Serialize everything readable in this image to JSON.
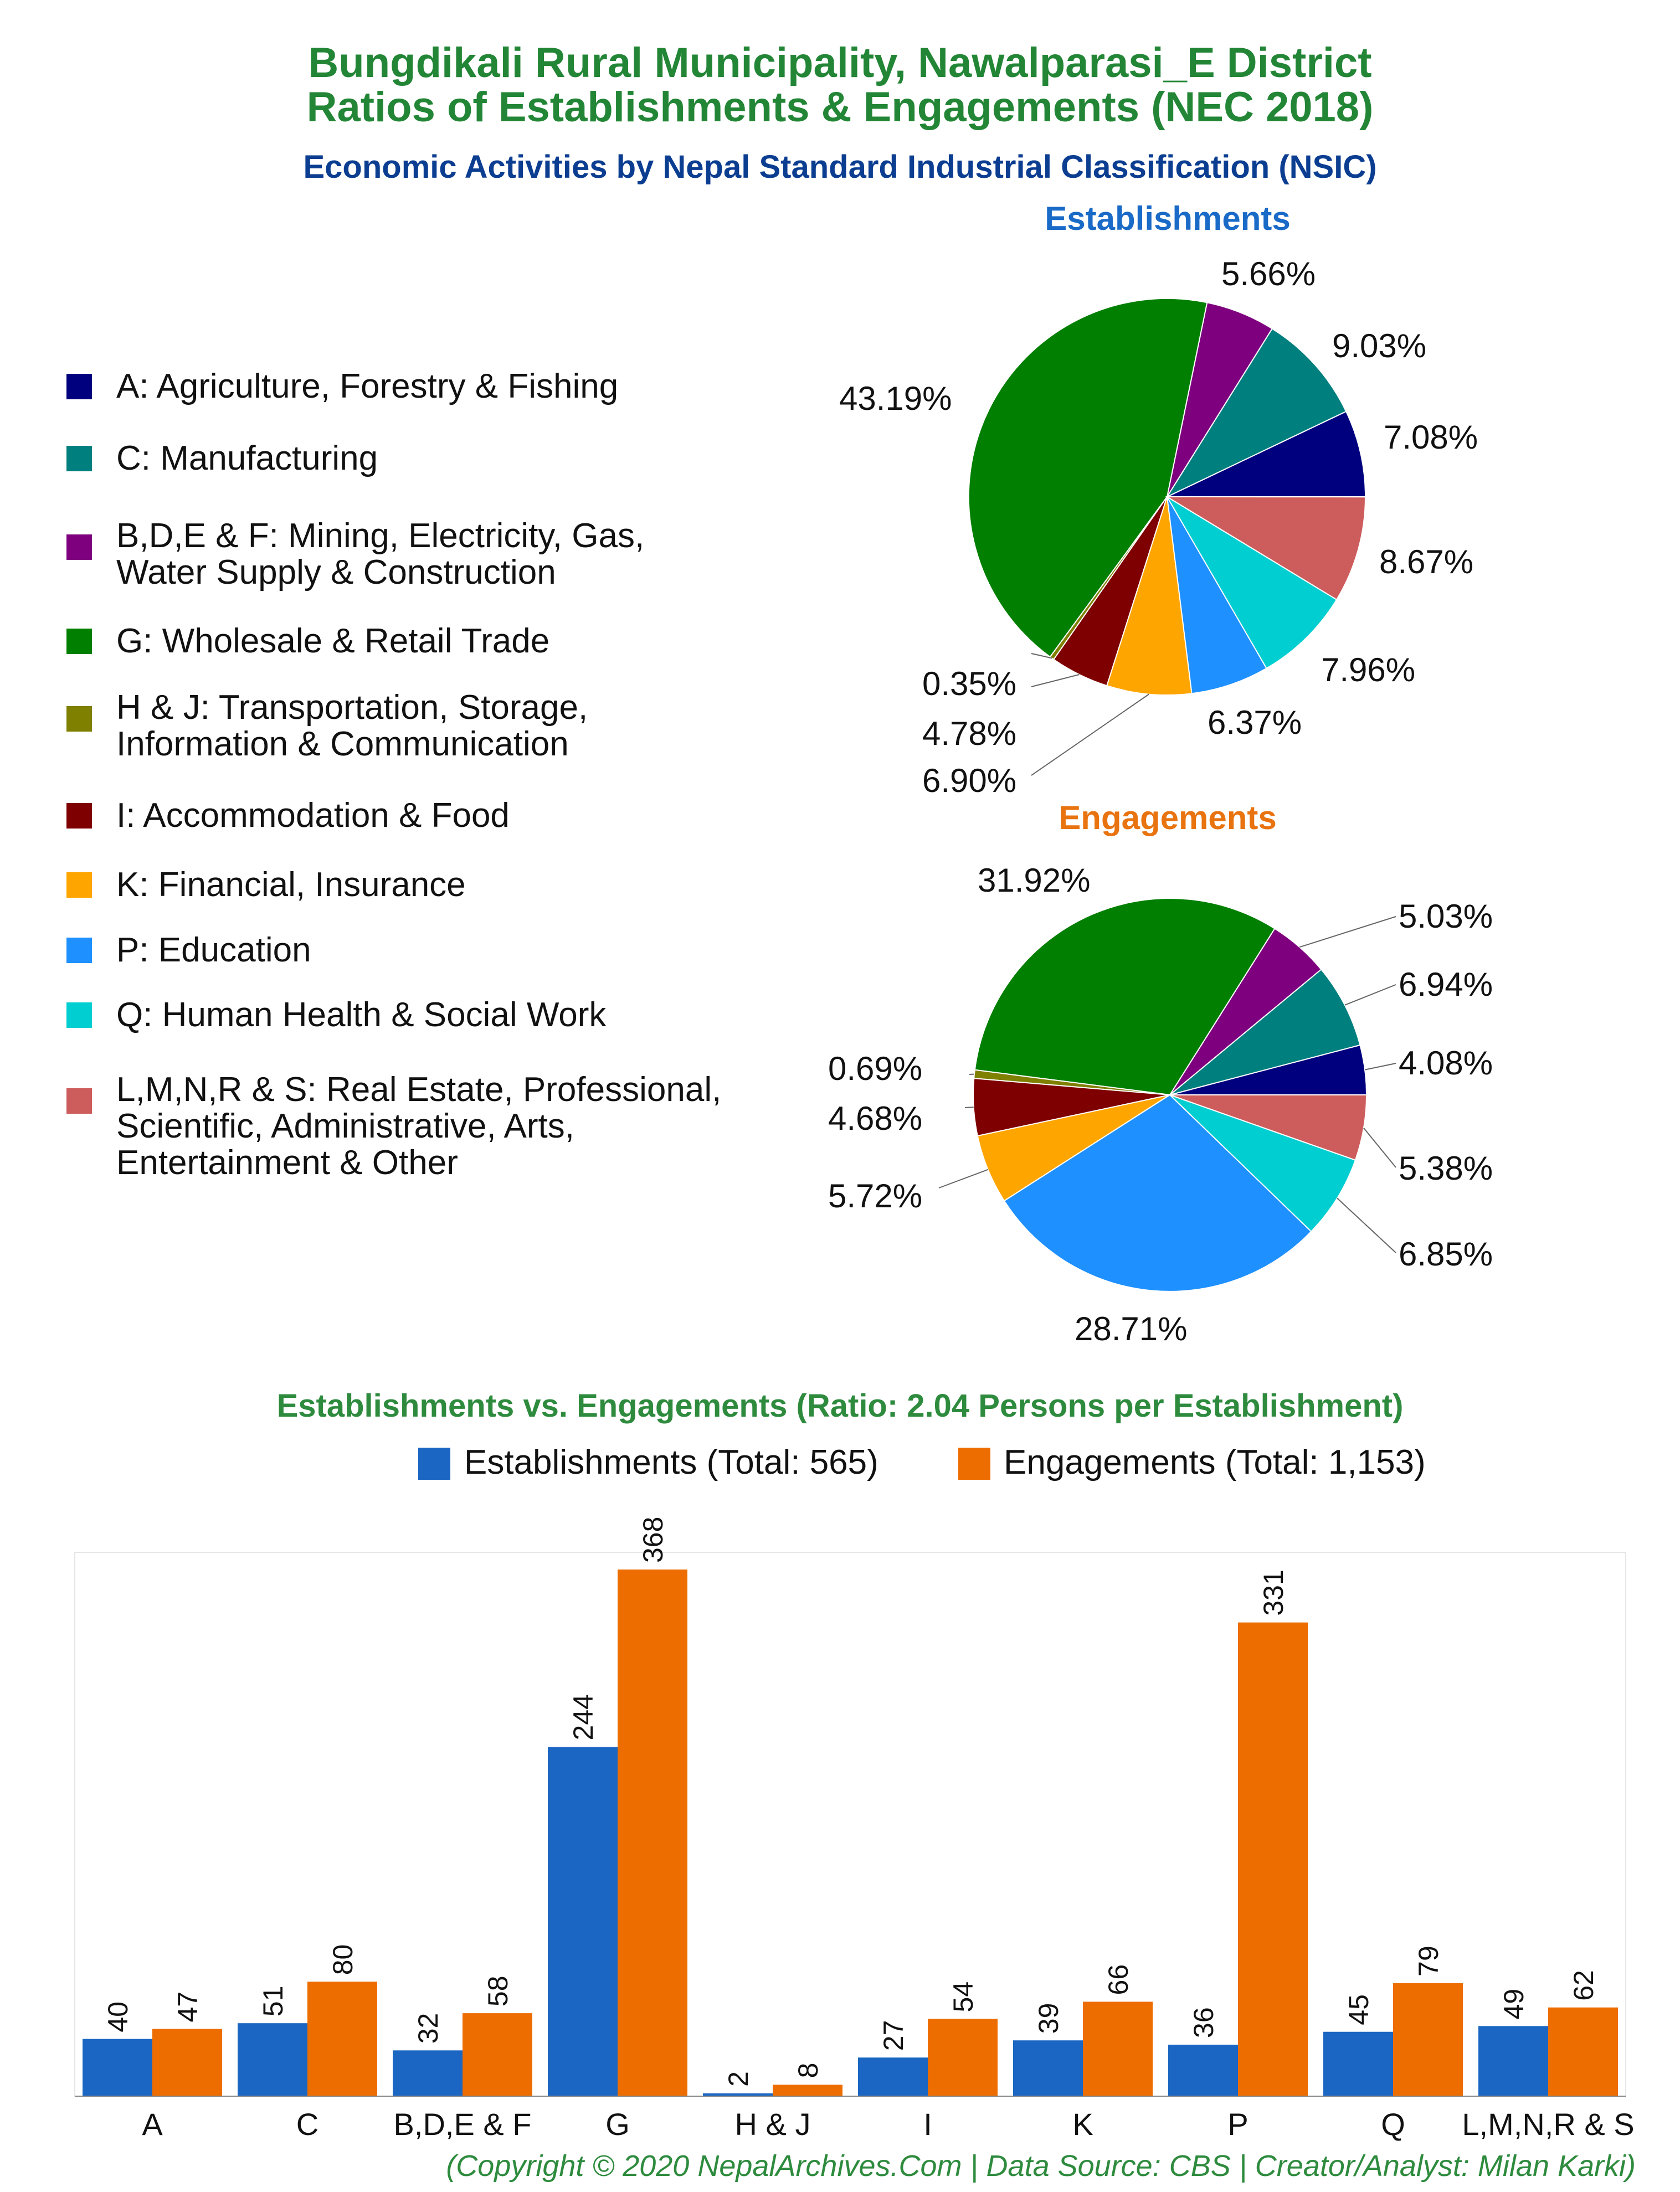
{
  "title_line1": "Bungdikali Rural Municipality, Nawalparasi_E District",
  "title_line2": "Ratios of Establishments & Engagements (NEC 2018)",
  "subtitle": "Economic Activities by Nepal Standard Industrial Classification (NSIC)",
  "legend": [
    {
      "label": "A: Agriculture, Forestry & Fishing",
      "color": "#00007f"
    },
    {
      "label": "C: Manufacturing",
      "color": "#007f7f"
    },
    {
      "label": "B,D,E & F: Mining, Electricity, Gas,\nWater Supply & Construction",
      "color": "#7f007f"
    },
    {
      "label": "G: Wholesale & Retail Trade",
      "color": "#007f00"
    },
    {
      "label": "H & J: Transportation, Storage,\nInformation & Communication",
      "color": "#7f7f00"
    },
    {
      "label": "I: Accommodation & Food",
      "color": "#7f0000"
    },
    {
      "label": "K: Financial, Insurance",
      "color": "#ffa500"
    },
    {
      "label": "P: Education",
      "color": "#1e90ff"
    },
    {
      "label": "Q: Human Health & Social Work",
      "color": "#00ced1"
    },
    {
      "label": "L,M,N,R & S: Real Estate, Professional,\nScientific, Administrative, Arts,\nEntertainment & Other",
      "color": "#cd5c5c"
    }
  ],
  "establishments_title": "Establishments",
  "engagements_title": "Engagements",
  "bar_title": "Establishments vs. Engagements (Ratio: 2.04 Persons per Establishment)",
  "bar_legend": {
    "establishments": "Establishments (Total: 565)",
    "engagements": "Engagements (Total: 1,153)",
    "establishments_color": "#1a66c2",
    "engagements_color": "#ee6d00"
  },
  "footer": "(Copyright © 2020 NepalArchives.Com | Data Source: CBS | Creator/Analyst: Milan Karki)",
  "chart_data": [
    {
      "type": "pie",
      "title": "Establishments",
      "labels": [
        "A",
        "C",
        "B,D,E & F",
        "G",
        "H & J",
        "I",
        "K",
        "P",
        "Q",
        "L,M,N,R & S"
      ],
      "values": [
        7.08,
        9.03,
        5.66,
        43.19,
        0.35,
        4.78,
        6.9,
        6.37,
        7.96,
        8.67
      ],
      "value_labels": [
        "7.08%",
        "9.03%",
        "5.66%",
        "43.19%",
        "0.35%",
        "4.78%",
        "6.90%",
        "6.37%",
        "7.96%",
        "8.67%"
      ]
    },
    {
      "type": "pie",
      "title": "Engagements",
      "labels": [
        "A",
        "C",
        "B,D,E & F",
        "G",
        "H & J",
        "I",
        "K",
        "P",
        "Q",
        "L,M,N,R & S"
      ],
      "values": [
        4.08,
        6.94,
        5.03,
        31.92,
        0.69,
        4.68,
        5.72,
        28.71,
        6.85,
        5.38
      ],
      "value_labels": [
        "4.08%",
        "6.94%",
        "5.03%",
        "31.92%",
        "0.69%",
        "4.68%",
        "5.72%",
        "28.71%",
        "6.85%",
        "5.38%"
      ]
    },
    {
      "type": "bar",
      "title": "Establishments vs. Engagements (Ratio: 2.04 Persons per Establishment)",
      "categories": [
        "A",
        "C",
        "B,D,E & F",
        "G",
        "H & J",
        "I",
        "K",
        "P",
        "Q",
        "L,M,N,R & S"
      ],
      "series": [
        {
          "name": "Establishments (Total: 565)",
          "values": [
            40,
            51,
            32,
            244,
            2,
            27,
            39,
            36,
            45,
            49
          ]
        },
        {
          "name": "Engagements (Total: 1,153)",
          "values": [
            47,
            80,
            58,
            368,
            8,
            54,
            66,
            331,
            79,
            62
          ]
        }
      ],
      "ylim": [
        0,
        380
      ]
    }
  ]
}
